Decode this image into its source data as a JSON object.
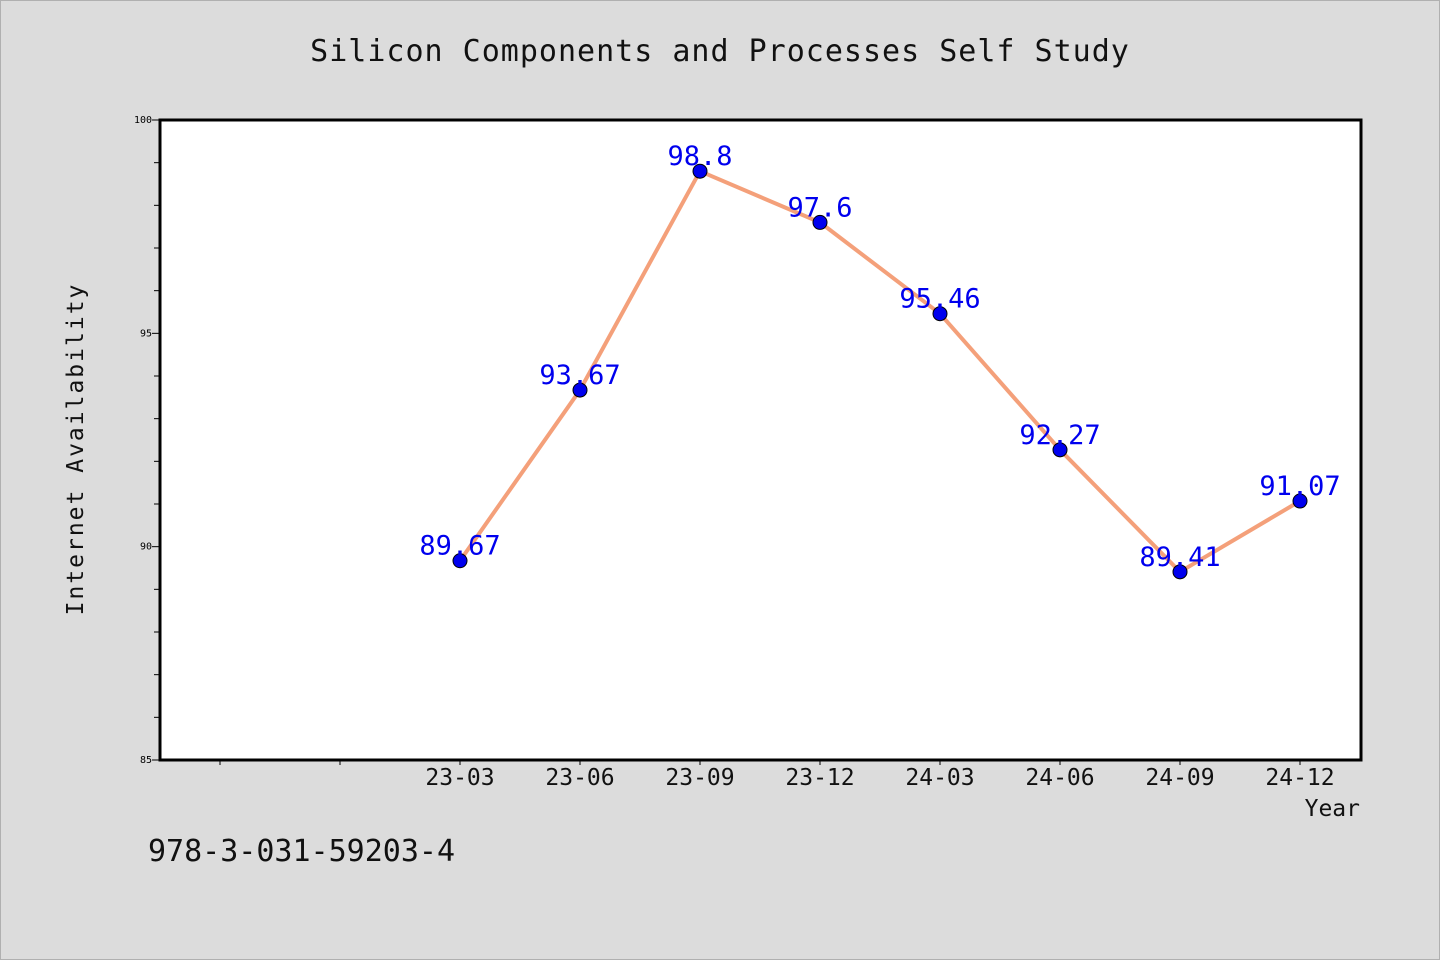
{
  "chart_data": {
    "type": "line",
    "title": "Silicon Components and Processes Self Study",
    "xlabel": "Year",
    "ylabel": "Internet Availability",
    "categories": [
      "23-03",
      "23-06",
      "23-09",
      "23-12",
      "24-03",
      "24-06",
      "24-09",
      "24-12"
    ],
    "series": [
      {
        "values": [
          89.67,
          93.67,
          98.8,
          97.6,
          95.46,
          92.27,
          89.41,
          91.07
        ]
      }
    ],
    "ylim": [
      85,
      100
    ],
    "yticks": [
      "85",
      "90",
      "95",
      "100"
    ],
    "grid": false,
    "line_color": "#f4a07a",
    "marker_color": "#0000ee",
    "label_color": "#0000ee"
  },
  "footnote": "978-3-031-59203-4"
}
